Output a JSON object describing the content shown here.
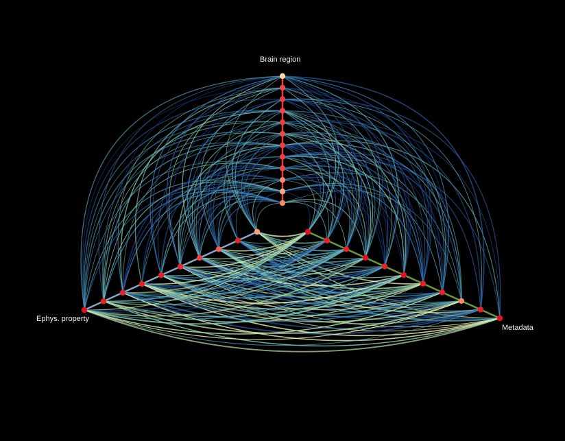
{
  "figure": {
    "type": "hive-plot",
    "background": "#000000"
  },
  "axes": [
    {
      "key": "top",
      "label": "Brain region",
      "node_count": 12,
      "axis_color": "#e0403a"
    },
    {
      "key": "left",
      "label": "Ephys. property",
      "node_count": 10,
      "axis_color": "#8aa6c8"
    },
    {
      "key": "right",
      "label": "Metadata",
      "node_count": 11,
      "axis_color": "#6a9a3a"
    }
  ],
  "node_colors": {
    "top": [
      "#f08a6a",
      "#f4a88a",
      "#f08a6a",
      "#e84a4a",
      "#e64040",
      "#e64040",
      "#e84a4a",
      "#e64040",
      "#e84a4a",
      "#e64040",
      "#e84a4a",
      "#f8d4a8"
    ],
    "left": [
      "#f4a07a",
      "#e8202a",
      "#f06060",
      "#e84040",
      "#e82a30",
      "#e8202a",
      "#e8202a",
      "#e82030",
      "#e8202a",
      "#e8101e"
    ],
    "right": [
      "#e8101e",
      "#e8202a",
      "#e8202a",
      "#e8101e",
      "#e8202a",
      "#e8101e",
      "#e8202a",
      "#e8202a",
      "#f08a6a",
      "#e8202a",
      "#e8101e"
    ]
  },
  "edge_palette": [
    "#1e3a8a",
    "#2b5fa8",
    "#3a86bd",
    "#5ab2c6",
    "#86cfba",
    "#c2e8a8",
    "#f0f8b8"
  ]
}
